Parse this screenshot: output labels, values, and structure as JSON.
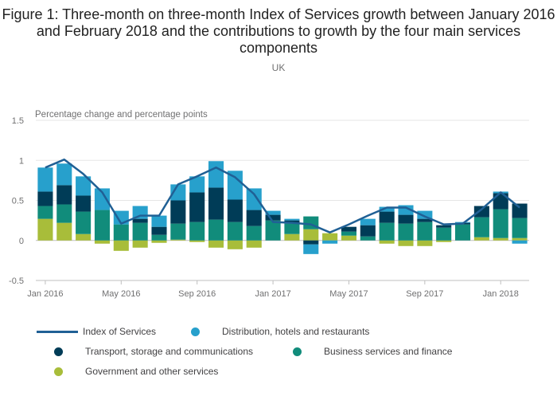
{
  "title": "Figure 1: Three-month on three-month Index of Services growth between January 2016 and February 2018 and the contributions to growth by the four main services components",
  "subtitle": "UK",
  "chart_data": {
    "type": "bar",
    "stacked": true,
    "ylabel": "Percentage change and percentage points",
    "ylim": [
      -0.5,
      1.5
    ],
    "yticks": [
      "-0.5",
      "0",
      "0.5",
      "1",
      "1.5"
    ],
    "categories": [
      "Jan 2016",
      "Feb 2016",
      "Mar 2016",
      "Apr 2016",
      "May 2016",
      "Jun 2016",
      "Jul 2016",
      "Aug 2016",
      "Sep 2016",
      "Oct 2016",
      "Nov 2016",
      "Dec 2016",
      "Jan 2017",
      "Feb 2017",
      "Mar 2017",
      "Apr 2017",
      "May 2017",
      "Jun 2017",
      "Jul 2017",
      "Aug 2017",
      "Sep 2017",
      "Oct 2017",
      "Nov 2017",
      "Dec 2017",
      "Jan 2018",
      "Feb 2018"
    ],
    "xtick_labels": [
      {
        "index": 0,
        "label": "Jan 2016"
      },
      {
        "index": 4,
        "label": "May 2016"
      },
      {
        "index": 8,
        "label": "Sep 2016"
      },
      {
        "index": 12,
        "label": "Jan 2017"
      },
      {
        "index": 16,
        "label": "May 2017"
      },
      {
        "index": 20,
        "label": "Sep 2017"
      },
      {
        "index": 24,
        "label": "Jan 2018"
      }
    ],
    "series": [
      {
        "name": "Government and other services",
        "color": "#a8bd3a",
        "values": [
          0.27,
          0.22,
          0.08,
          -0.04,
          -0.13,
          -0.09,
          -0.03,
          0.01,
          -0.02,
          -0.09,
          -0.11,
          -0.09,
          0.0,
          0.08,
          0.14,
          0.09,
          0.06,
          0.0,
          -0.04,
          -0.07,
          -0.07,
          -0.02,
          0.0,
          0.04,
          0.03,
          0.03
        ]
      },
      {
        "name": "Business services and finance",
        "color": "#118c7b",
        "values": [
          0.16,
          0.23,
          0.28,
          0.38,
          0.2,
          0.22,
          0.07,
          0.2,
          0.23,
          0.26,
          0.23,
          0.18,
          0.25,
          0.13,
          0.16,
          0.0,
          0.05,
          0.05,
          0.22,
          0.21,
          0.23,
          0.16,
          0.2,
          0.25,
          0.36,
          0.25
        ]
      },
      {
        "name": "Transport, storage and communications",
        "color": "#003c57",
        "values": [
          0.18,
          0.24,
          0.2,
          0.0,
          0.0,
          0.05,
          0.1,
          0.29,
          0.37,
          0.4,
          0.28,
          0.2,
          0.07,
          0.04,
          -0.05,
          0.0,
          0.06,
          0.14,
          0.14,
          0.11,
          0.04,
          0.03,
          0.02,
          0.14,
          0.2,
          0.18
        ]
      },
      {
        "name": "Distribution, hotels and restaurants",
        "color": "#27a0cc",
        "values": [
          0.3,
          0.27,
          0.24,
          0.27,
          0.17,
          0.16,
          0.14,
          0.2,
          0.2,
          0.33,
          0.36,
          0.27,
          0.05,
          0.02,
          -0.12,
          -0.04,
          0.0,
          0.08,
          0.06,
          0.12,
          0.1,
          0.0,
          0.01,
          0.0,
          0.02,
          -0.04
        ]
      }
    ],
    "line": {
      "name": "Index of Services",
      "color": "#206095",
      "values": [
        0.91,
        1.01,
        0.83,
        0.6,
        0.21,
        0.31,
        0.31,
        0.7,
        0.8,
        0.91,
        0.79,
        0.58,
        0.23,
        0.22,
        0.2,
        0.1,
        0.2,
        0.31,
        0.41,
        0.41,
        0.3,
        0.2,
        0.21,
        0.39,
        0.6,
        0.41
      ]
    },
    "grid": true,
    "legend_position": "bottom"
  },
  "legend": {
    "items": [
      {
        "label": "Index of Services",
        "type": "line",
        "color": "#206095"
      },
      {
        "label": "Distribution, hotels and restaurants",
        "type": "dot",
        "color": "#27a0cc"
      },
      {
        "label": "Transport, storage and communications",
        "type": "dot",
        "color": "#003c57"
      },
      {
        "label": "Business services and finance",
        "type": "dot",
        "color": "#118c7b"
      },
      {
        "label": "Government and other services",
        "type": "dot",
        "color": "#a8bd3a"
      }
    ]
  }
}
